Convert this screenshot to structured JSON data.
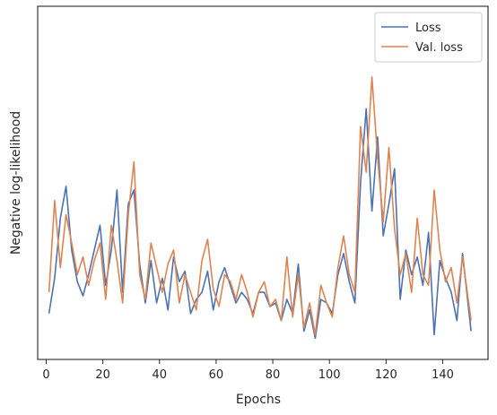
{
  "chart_data": {
    "type": "line",
    "xlabel": "Epochs",
    "ylabel": "Negative log-likelihood",
    "xlim": [
      -3,
      156
    ],
    "ylim": [
      0,
      100
    ],
    "xticks": [
      0,
      20,
      40,
      60,
      80,
      100,
      120,
      140
    ],
    "yticks_labeled": false,
    "grid": false,
    "legend": "top-right",
    "series": [
      {
        "name": "Loss",
        "color": "#4c72b0",
        "x": [
          1,
          3,
          5,
          7,
          9,
          11,
          13,
          15,
          17,
          19,
          21,
          23,
          25,
          27,
          29,
          31,
          33,
          35,
          37,
          39,
          41,
          43,
          45,
          47,
          49,
          51,
          53,
          55,
          57,
          59,
          61,
          63,
          65,
          67,
          69,
          71,
          73,
          75,
          77,
          79,
          81,
          83,
          85,
          87,
          89,
          91,
          93,
          95,
          97,
          99,
          101,
          103,
          105,
          107,
          109,
          111,
          113,
          115,
          117,
          119,
          121,
          123,
          125,
          127,
          129,
          131,
          133,
          135,
          137,
          139,
          141,
          143,
          145,
          147,
          150
        ],
        "y": [
          13,
          23,
          40,
          49,
          31,
          22,
          18,
          24,
          31,
          38,
          21,
          31,
          48,
          19,
          44,
          48,
          27,
          16,
          28,
          16,
          23,
          14,
          29,
          22,
          25,
          13,
          17,
          19,
          25,
          14,
          22,
          26,
          21,
          16,
          19,
          17,
          13,
          19,
          19,
          15,
          16,
          11,
          17,
          13,
          27,
          8,
          14,
          6,
          17,
          16,
          13,
          24,
          30,
          22,
          16,
          50,
          71,
          42,
          63,
          35,
          44,
          54,
          17,
          31,
          24,
          29,
          21,
          36,
          7,
          28,
          23,
          19,
          11,
          30,
          8
        ]
      },
      {
        "name": "Val. loss",
        "color": "#dd8452",
        "x": [
          1,
          3,
          5,
          7,
          9,
          11,
          13,
          15,
          17,
          19,
          21,
          23,
          25,
          27,
          29,
          31,
          33,
          35,
          37,
          39,
          41,
          43,
          45,
          47,
          49,
          51,
          53,
          55,
          57,
          59,
          61,
          63,
          65,
          67,
          69,
          71,
          73,
          75,
          77,
          79,
          81,
          83,
          85,
          87,
          89,
          91,
          93,
          95,
          97,
          99,
          101,
          103,
          105,
          107,
          109,
          111,
          113,
          115,
          117,
          119,
          121,
          123,
          125,
          127,
          129,
          131,
          133,
          135,
          137,
          139,
          141,
          143,
          145,
          147,
          150
        ],
        "y": [
          19,
          45,
          26,
          41,
          33,
          24,
          29,
          21,
          28,
          33,
          17,
          38,
          28,
          16,
          41,
          56,
          24,
          17,
          33,
          26,
          19,
          27,
          31,
          16,
          24,
          19,
          14,
          28,
          34,
          20,
          15,
          24,
          22,
          17,
          24,
          19,
          12,
          19,
          22,
          15,
          17,
          11,
          29,
          12,
          24,
          9,
          16,
          7,
          21,
          16,
          12,
          26,
          35,
          24,
          19,
          66,
          53,
          80,
          57,
          39,
          60,
          37,
          24,
          30,
          19,
          40,
          24,
          21,
          48,
          31,
          22,
          26,
          16,
          29,
          11
        ]
      }
    ]
  }
}
